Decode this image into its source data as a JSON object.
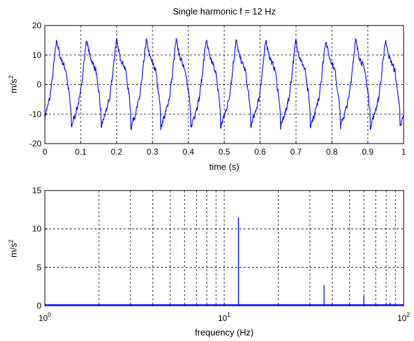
{
  "chart_data": [
    {
      "type": "line",
      "title": "Single harmonic f = 12 Hz",
      "xlabel": "time (s)",
      "ylabel": "m/s",
      "ylabel_exponent": "2",
      "xlim": [
        0,
        1
      ],
      "ylim": [
        -20,
        20
      ],
      "xscale": "linear",
      "grid": true,
      "xticks": [
        "0",
        "0.1",
        "0.2",
        "0.3",
        "0.4",
        "0.5",
        "0.6",
        "0.7",
        "0.8",
        "0.9",
        "1"
      ],
      "yticks": [
        "20",
        "10",
        "0",
        "-10",
        "-20"
      ],
      "series": [
        {
          "color": "#0000ff",
          "fundamental_hz": 12,
          "peak": 15,
          "trough": -15.5,
          "first_peak_t": 0.033,
          "first_trough_t": 0.07
        }
      ]
    },
    {
      "type": "line",
      "title": "",
      "xlabel": "frequency (Hz)",
      "ylabel": "m/s",
      "ylabel_exponent": "2",
      "xlim": [
        1,
        100
      ],
      "ylim": [
        0,
        15
      ],
      "xscale": "log",
      "grid": true,
      "xticks": [
        {
          "base": "10",
          "exp": "0"
        },
        {
          "base": "10",
          "exp": "1"
        },
        {
          "base": "10",
          "exp": "2"
        }
      ],
      "yticks": [
        "15",
        "10",
        "5",
        "0"
      ],
      "series": [
        {
          "color": "#0000ff",
          "peaks": [
            {
              "f": 12,
              "a": 11.5
            },
            {
              "f": 36,
              "a": 2.7
            },
            {
              "f": 60,
              "a": 1.3
            },
            {
              "f": 84,
              "a": 0.4
            }
          ]
        }
      ]
    }
  ]
}
